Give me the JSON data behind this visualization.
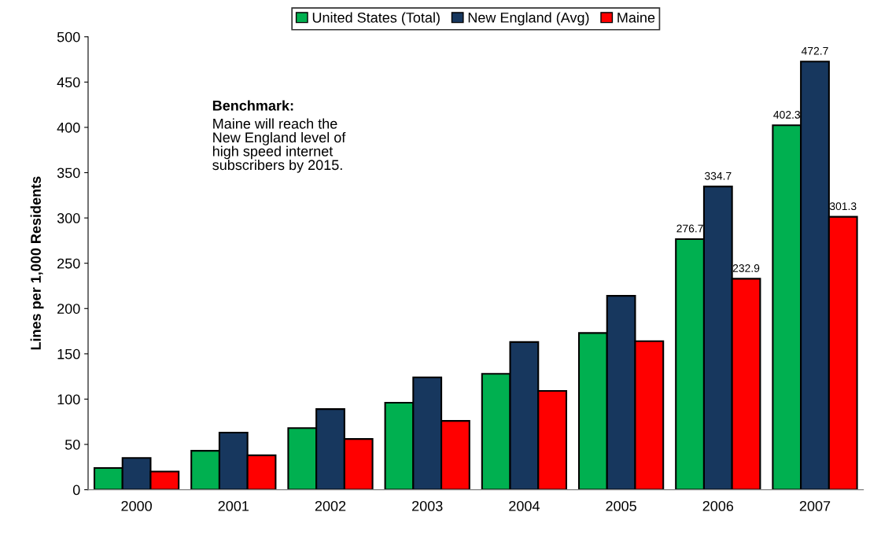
{
  "chart_data": {
    "type": "bar",
    "ylabel": "Lines per 1,000 Residents",
    "categories": [
      "2000",
      "2001",
      "2002",
      "2003",
      "2004",
      "2005",
      "2006",
      "2007"
    ],
    "series": [
      {
        "name": "United States (Total)",
        "color": "#00b050",
        "values": [
          24,
          43,
          68,
          96,
          128,
          173,
          276.7,
          402.3
        ],
        "value_labels": [
          null,
          null,
          null,
          null,
          null,
          null,
          "276.7",
          "402.3"
        ]
      },
      {
        "name": "New England (Avg)",
        "color": "#17375e",
        "values": [
          35,
          63,
          89,
          124,
          163,
          214,
          334.7,
          472.7
        ],
        "value_labels": [
          null,
          null,
          null,
          null,
          null,
          null,
          "334.7",
          "472.7"
        ]
      },
      {
        "name": "Maine",
        "color": "#ff0000",
        "values": [
          20,
          38,
          56,
          76,
          109,
          164,
          232.9,
          301.3
        ],
        "value_labels": [
          null,
          null,
          null,
          null,
          null,
          null,
          "232.9",
          "301.3"
        ]
      }
    ],
    "ylim": [
      0,
      500
    ],
    "yticks": [
      0,
      50,
      100,
      150,
      200,
      250,
      300,
      350,
      400,
      450,
      500
    ],
    "grid": false,
    "legend": "top",
    "annotations": [
      "Benchmark:",
      "Maine will reach the\nNew England level of\nhigh speed internet\nsubscribers by 2015."
    ]
  }
}
